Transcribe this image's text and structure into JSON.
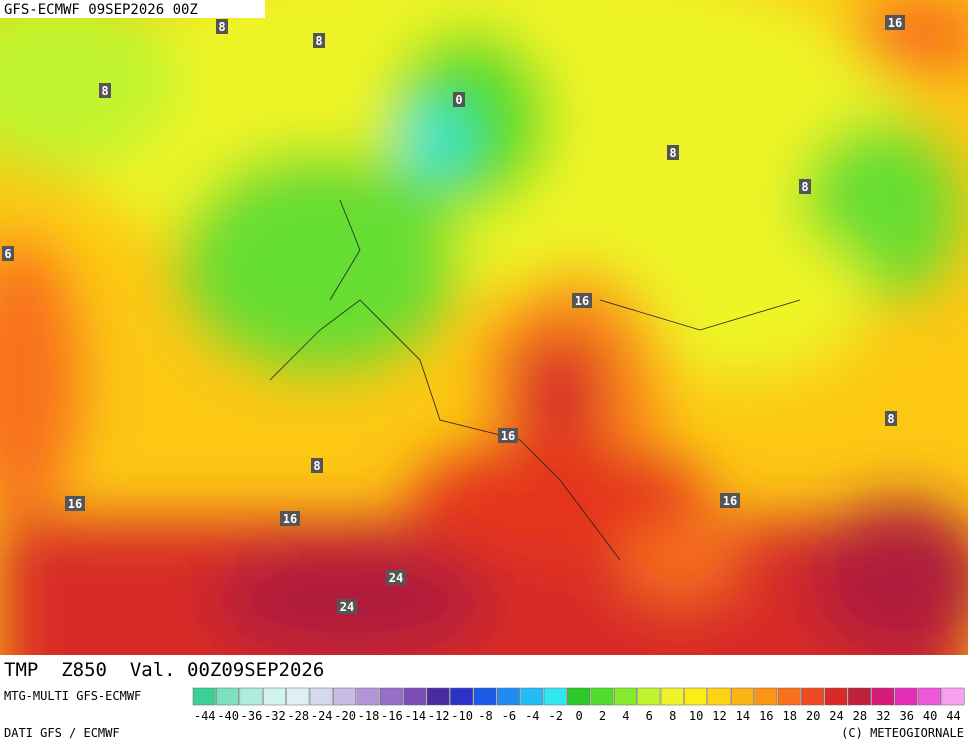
{
  "header": {
    "title": "GFS-ECMWF 09SEP2026 00Z"
  },
  "map": {
    "contour_labels": [
      "8",
      "8",
      "16",
      "8",
      "0",
      "8",
      "8",
      "6",
      "16",
      "16",
      "8",
      "8",
      "16",
      "16",
      "16",
      "24",
      "24"
    ]
  },
  "footer": {
    "title": "TMP  Z850  Val. 00Z09SEP2026",
    "model": "MTG-MULTI GFS-ECMWF",
    "source": "DATI GFS / ECMWF",
    "credit": "(C) METEOGIORNALE"
  },
  "colorbar": {
    "labels": [
      -44,
      -40,
      -36,
      -32,
      -28,
      -24,
      -20,
      -18,
      -16,
      -14,
      -12,
      -10,
      -8,
      -6,
      -4,
      -2,
      0,
      2,
      4,
      6,
      8,
      10,
      12,
      14,
      16,
      18,
      20,
      24,
      28,
      32,
      36,
      40,
      44
    ],
    "colors": [
      "#3ccf96",
      "#7de0c0",
      "#b0ecdc",
      "#d2f4ee",
      "#e0eef6",
      "#d6d8f0",
      "#c8bce6",
      "#b296d8",
      "#9670c8",
      "#7a4cb4",
      "#4a2aa0",
      "#2a32c8",
      "#1a5ae6",
      "#1e8cf0",
      "#22bcf6",
      "#30e6f0",
      "#2ec828",
      "#52dc2c",
      "#88ec2e",
      "#c0f42e",
      "#eef428",
      "#fcec18",
      "#fcd414",
      "#fcb414",
      "#fc9414",
      "#f8701c",
      "#ee4a22",
      "#d82a28",
      "#c0203a",
      "#d41c78",
      "#e42cb4",
      "#f058dc",
      "#f8a0f0"
    ]
  }
}
